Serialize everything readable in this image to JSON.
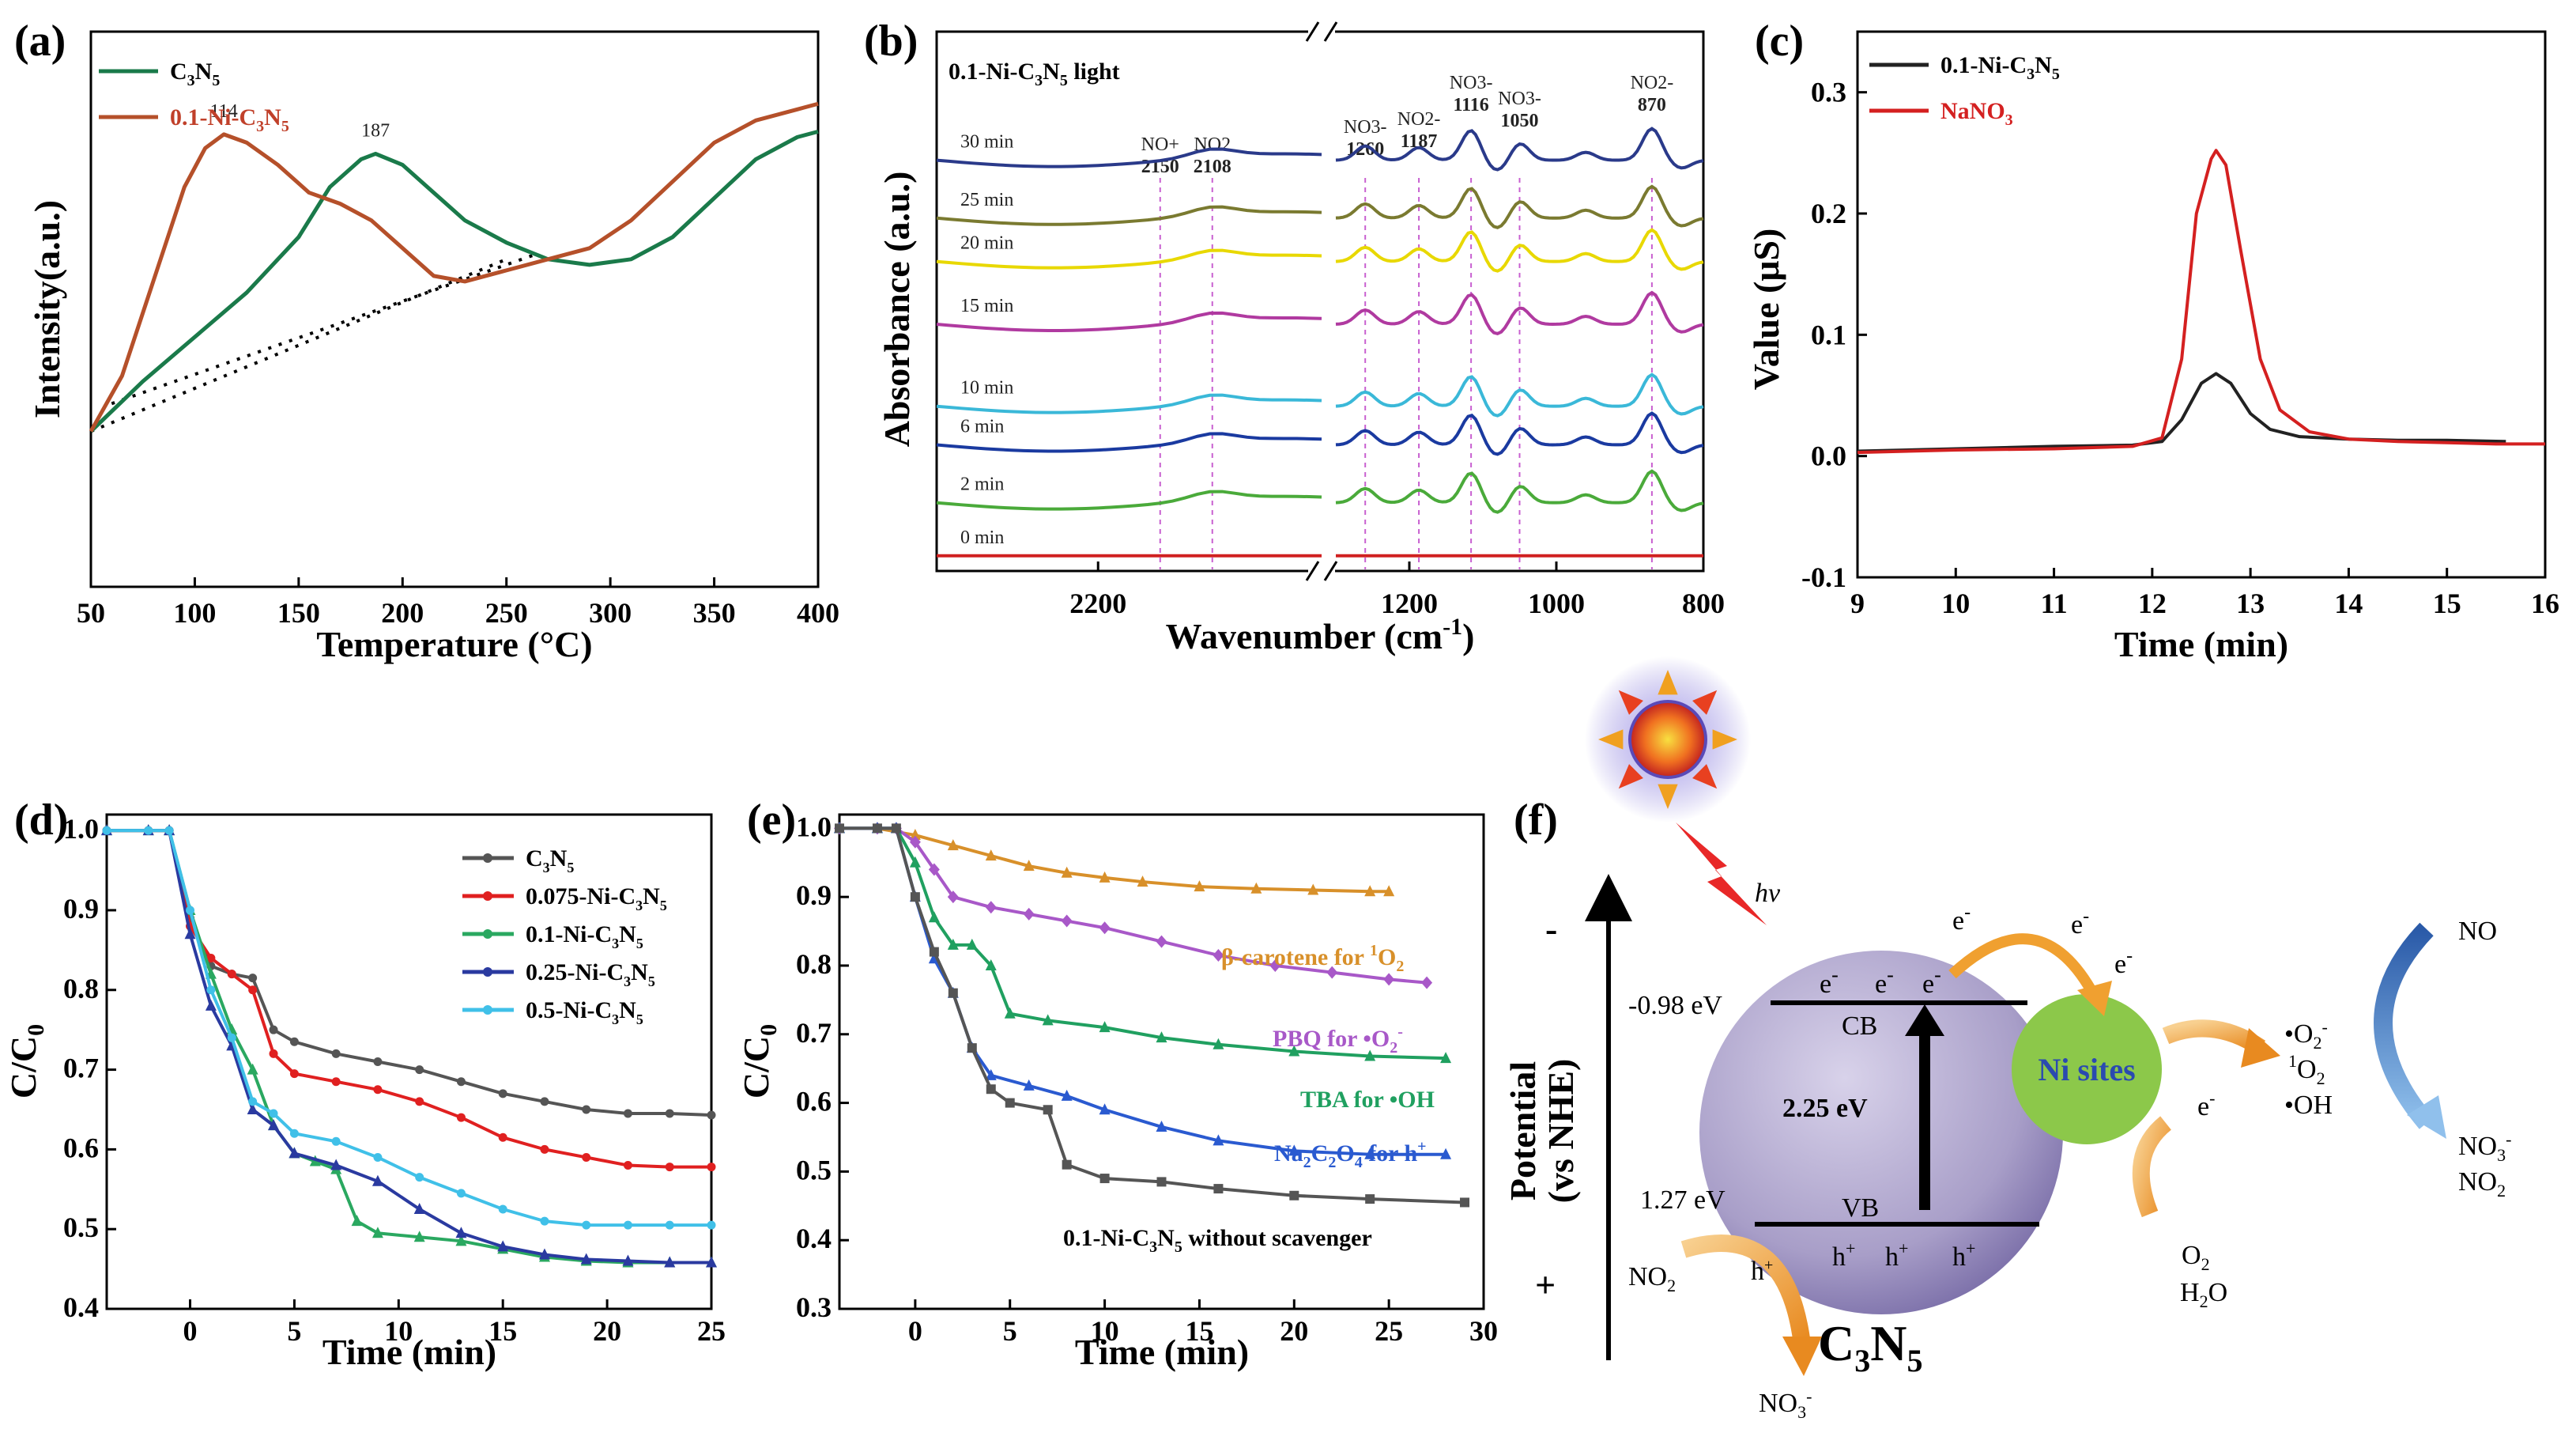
{
  "chart_data": [
    {
      "id": "a",
      "panel_label": "(a)",
      "type": "line",
      "xlabel": "Temperature (°C)",
      "ylabel": "Intensity(a.u.)",
      "xlim": [
        50,
        400
      ],
      "ylim": [
        0,
        1
      ],
      "xticks": [
        "50",
        "100",
        "150",
        "200",
        "250",
        "300",
        "350",
        "400"
      ],
      "peak_labels": [
        {
          "text": "114",
          "x": 114,
          "y": 0.815
        },
        {
          "text": "187",
          "x": 187,
          "y": 0.78
        }
      ],
      "series": [
        {
          "name": "C3N5",
          "name_main": "C",
          "name_sub1": "3",
          "name_mid": "N",
          "name_sub2": "5",
          "color": "#1a7a4a",
          "x": [
            50,
            75,
            100,
            125,
            150,
            165,
            180,
            187,
            200,
            215,
            230,
            250,
            270,
            290,
            310,
            330,
            350,
            370,
            390,
            400
          ],
          "y": [
            0.28,
            0.37,
            0.45,
            0.53,
            0.63,
            0.72,
            0.77,
            0.78,
            0.76,
            0.71,
            0.66,
            0.62,
            0.59,
            0.58,
            0.59,
            0.63,
            0.7,
            0.77,
            0.81,
            0.82
          ]
        },
        {
          "name": "0.1-Ni-C3N5",
          "name_main": "0.1-Ni-C",
          "name_sub1": "3",
          "name_mid": "N",
          "name_sub2": "5",
          "color": "#b5502a",
          "x": [
            50,
            65,
            80,
            95,
            105,
            114,
            125,
            140,
            155,
            170,
            185,
            200,
            215,
            230,
            250,
            270,
            290,
            310,
            330,
            350,
            370,
            390,
            400
          ],
          "y": [
            0.28,
            0.38,
            0.55,
            0.72,
            0.79,
            0.815,
            0.8,
            0.76,
            0.71,
            0.69,
            0.66,
            0.61,
            0.56,
            0.55,
            0.57,
            0.59,
            0.61,
            0.66,
            0.73,
            0.8,
            0.84,
            0.86,
            0.87
          ]
        }
      ],
      "baselines": [
        {
          "x": [
            50,
            250
          ],
          "y": [
            0.28,
            0.59
          ]
        },
        {
          "x": [
            60,
            265
          ],
          "y": [
            0.33,
            0.6
          ]
        }
      ]
    },
    {
      "id": "b",
      "panel_label": "(b)",
      "type": "line",
      "title": "0.1-Ni-C3N5 light",
      "title_parts": {
        "main": "0.1-Ni-C",
        "sub1": "3",
        "mid": "N",
        "sub2": "5",
        "tail": " light"
      },
      "xlabel": "Wavenumber (cm-1)",
      "xlabel_main": "Wavenumber  (cm",
      "xlabel_sup": "-1",
      "xlabel_close": ")",
      "ylabel": "Absorbance (a.u.)",
      "xticks": [
        "2200",
        "1200",
        "1000",
        "800"
      ],
      "band_labels": [
        {
          "name": "NO+",
          "value": "2150"
        },
        {
          "name": "NO2",
          "value": "2108"
        },
        {
          "name": "NO3-",
          "value": "1260"
        },
        {
          "name": "NO2-",
          "value": "1187"
        },
        {
          "name": "NO3-",
          "value": "1116"
        },
        {
          "name": "NO3-",
          "value": "1050"
        },
        {
          "name": "NO2-",
          "value": "870"
        }
      ],
      "series": [
        {
          "name": "30 min",
          "color": "#2a3a8a",
          "offset": 0.84
        },
        {
          "name": "25 min",
          "color": "#7a7a30",
          "offset": 0.72
        },
        {
          "name": "20 min",
          "color": "#e8d800",
          "offset": 0.63
        },
        {
          "name": "15 min",
          "color": "#b03aa0",
          "offset": 0.5
        },
        {
          "name": "10 min",
          "color": "#3ab8d8",
          "offset": 0.33
        },
        {
          "name": "6 min",
          "color": "#1a3aa0",
          "offset": 0.25
        },
        {
          "name": "2 min",
          "color": "#4aaa3a",
          "offset": 0.13
        },
        {
          "name": "0 min",
          "color": "#d02020",
          "offset": 0.02
        }
      ]
    },
    {
      "id": "c",
      "panel_label": "(c)",
      "type": "line",
      "xlabel": "Time (min)",
      "ylabel": "Value  (μS)",
      "xlim": [
        9,
        16
      ],
      "ylim": [
        -0.1,
        0.35
      ],
      "xticks": [
        "9",
        "10",
        "11",
        "12",
        "13",
        "14",
        "15",
        "16"
      ],
      "yticks": [
        "-0.1",
        "0.0",
        "0.1",
        "0.2",
        "0.3"
      ],
      "series": [
        {
          "name": "0.1-Ni-C3N5",
          "name_main": "0.1-Ni-C",
          "name_sub1": "3",
          "name_mid": "N",
          "name_sub2": "5",
          "color": "#222222",
          "x": [
            9,
            10,
            11,
            11.8,
            12.1,
            12.3,
            12.5,
            12.65,
            12.8,
            13.0,
            13.2,
            13.5,
            14,
            14.5,
            15,
            15.6
          ],
          "y": [
            0.004,
            0.006,
            0.008,
            0.009,
            0.012,
            0.03,
            0.06,
            0.068,
            0.06,
            0.035,
            0.022,
            0.016,
            0.014,
            0.013,
            0.013,
            0.012
          ]
        },
        {
          "name": "NaNO3",
          "name_main": "NaNO",
          "name_sub1": "3",
          "name_mid": "",
          "name_sub2": "",
          "color": "#d42020",
          "x": [
            9,
            10,
            11,
            11.8,
            12.1,
            12.3,
            12.45,
            12.6,
            12.65,
            12.75,
            12.9,
            13.1,
            13.3,
            13.6,
            14,
            14.5,
            15,
            15.5,
            16
          ],
          "y": [
            0.003,
            0.005,
            0.006,
            0.008,
            0.015,
            0.08,
            0.2,
            0.245,
            0.252,
            0.24,
            0.17,
            0.08,
            0.038,
            0.02,
            0.014,
            0.012,
            0.011,
            0.01,
            0.01
          ]
        }
      ]
    },
    {
      "id": "d",
      "panel_label": "(d)",
      "type": "line",
      "xlabel": "Time (min)",
      "ylabel": "C/C0",
      "ylabel_main": "C/C",
      "ylabel_sub": "0",
      "xlim": [
        -4,
        25
      ],
      "ylim": [
        0.4,
        1.02
      ],
      "xticks": [
        "0",
        "5",
        "10",
        "15",
        "20",
        "25"
      ],
      "yticks": [
        "0.4",
        "0.5",
        "0.6",
        "0.7",
        "0.8",
        "0.9",
        "1.0"
      ],
      "series": [
        {
          "name": "C3N5",
          "name_main": "C",
          "name_sub1": "3",
          "name_mid": "N",
          "name_sub2": "5",
          "color": "#555555",
          "x": [
            -4,
            -2,
            -1,
            0,
            1,
            2,
            3,
            4,
            5,
            7,
            9,
            11,
            13,
            15,
            17,
            19,
            21,
            23,
            25
          ],
          "y": [
            1.0,
            1.0,
            1.0,
            0.89,
            0.83,
            0.82,
            0.815,
            0.75,
            0.735,
            0.72,
            0.71,
            0.7,
            0.685,
            0.67,
            0.66,
            0.65,
            0.645,
            0.645,
            0.643
          ]
        },
        {
          "name": "0.075-Ni-C3N5",
          "name_main": "0.075-Ni-C",
          "name_sub1": "3",
          "name_mid": "N",
          "name_sub2": "5",
          "color": "#e02020",
          "x": [
            -4,
            -2,
            -1,
            0,
            1,
            2,
            3,
            4,
            5,
            7,
            9,
            11,
            13,
            15,
            17,
            19,
            21,
            23,
            25
          ],
          "y": [
            1.0,
            1.0,
            1.0,
            0.88,
            0.84,
            0.82,
            0.8,
            0.72,
            0.695,
            0.685,
            0.675,
            0.66,
            0.64,
            0.615,
            0.6,
            0.59,
            0.58,
            0.578,
            0.578
          ]
        },
        {
          "name": "0.1-Ni-C3N5",
          "name_main": "0.1-Ni-C",
          "name_sub1": "3",
          "name_mid": "N",
          "name_sub2": "5",
          "color": "#2aa860",
          "x": [
            -4,
            -2,
            -1,
            0,
            1,
            2,
            3,
            4,
            5,
            6,
            7,
            8,
            9,
            11,
            13,
            15,
            17,
            19,
            21,
            23,
            25
          ],
          "y": [
            1.0,
            1.0,
            1.0,
            0.9,
            0.82,
            0.75,
            0.7,
            0.63,
            0.595,
            0.585,
            0.575,
            0.51,
            0.495,
            0.49,
            0.485,
            0.475,
            0.465,
            0.46,
            0.458,
            0.458,
            0.458
          ]
        },
        {
          "name": "0.25-Ni-C3N5",
          "name_main": "0.25-Ni-C",
          "name_sub1": "3",
          "name_mid": "N",
          "name_sub2": "5",
          "color": "#2a3aa0",
          "x": [
            -4,
            -2,
            -1,
            0,
            1,
            2,
            3,
            4,
            5,
            7,
            9,
            11,
            13,
            15,
            17,
            19,
            21,
            23,
            25
          ],
          "y": [
            1.0,
            1.0,
            1.0,
            0.87,
            0.78,
            0.73,
            0.65,
            0.63,
            0.595,
            0.58,
            0.56,
            0.525,
            0.495,
            0.478,
            0.468,
            0.462,
            0.46,
            0.458,
            0.458
          ]
        },
        {
          "name": "0.5-Ni-C3N5",
          "name_main": "0.5-Ni-C",
          "name_sub1": "3",
          "name_mid": "N",
          "name_sub2": "5",
          "color": "#40c0e8",
          "x": [
            -4,
            -2,
            -1,
            0,
            1,
            2,
            3,
            4,
            5,
            7,
            9,
            11,
            13,
            15,
            17,
            19,
            21,
            23,
            25
          ],
          "y": [
            1.0,
            1.0,
            1.0,
            0.9,
            0.8,
            0.74,
            0.66,
            0.645,
            0.62,
            0.61,
            0.59,
            0.565,
            0.545,
            0.525,
            0.51,
            0.505,
            0.505,
            0.505,
            0.505
          ]
        }
      ]
    },
    {
      "id": "e",
      "panel_label": "(e)",
      "type": "line",
      "xlabel": "Time (min)",
      "ylabel": "C/C0",
      "ylabel_main": "C/C",
      "ylabel_sub": "0",
      "xlim": [
        -4,
        30
      ],
      "ylim": [
        0.3,
        1.02
      ],
      "xticks": [
        "0",
        "5",
        "10",
        "15",
        "20",
        "25",
        "30"
      ],
      "yticks": [
        "0.3",
        "0.4",
        "0.5",
        "0.6",
        "0.7",
        "0.8",
        "0.9",
        "1.0"
      ],
      "series": [
        {
          "name": "β-carotene for 1O2",
          "label_main": "β-carotene for ",
          "label_sup": "1",
          "label_tail": "O",
          "label_sub": "2",
          "color": "#d8902a",
          "x": [
            -4,
            -2,
            0,
            2,
            4,
            6,
            8,
            10,
            12,
            15,
            18,
            21,
            24,
            25
          ],
          "y": [
            1.0,
            1.0,
            0.99,
            0.975,
            0.96,
            0.945,
            0.935,
            0.928,
            0.922,
            0.915,
            0.912,
            0.91,
            0.908,
            0.908
          ]
        },
        {
          "name": "PBQ for •O2-",
          "label_main": "PBQ for •O",
          "label_sup": "-",
          "label_tail": "",
          "label_sub": "2",
          "color": "#a858c8",
          "x": [
            -4,
            -2,
            -1,
            0,
            1,
            2,
            4,
            6,
            8,
            10,
            13,
            16,
            19,
            22,
            25,
            27
          ],
          "y": [
            1.0,
            1.0,
            1.0,
            0.98,
            0.94,
            0.9,
            0.885,
            0.875,
            0.865,
            0.855,
            0.835,
            0.815,
            0.8,
            0.79,
            0.78,
            0.775
          ]
        },
        {
          "name": "TBA for •OH",
          "label_main": "TBA for •OH",
          "label_sup": "",
          "label_tail": "",
          "label_sub": "",
          "color": "#20a060",
          "x": [
            -4,
            -2,
            -1,
            0,
            1,
            2,
            3,
            4,
            5,
            7,
            10,
            13,
            16,
            20,
            24,
            28
          ],
          "y": [
            1.0,
            1.0,
            1.0,
            0.95,
            0.87,
            0.83,
            0.83,
            0.8,
            0.73,
            0.72,
            0.71,
            0.695,
            0.685,
            0.675,
            0.668,
            0.665
          ]
        },
        {
          "name": "Na2C2O4 for h+",
          "label_main": "Na",
          "label_sup": "+",
          "label_tail": "",
          "label_sub": "2",
          "color": "#2a5ad0",
          "x": [
            -4,
            -2,
            -1,
            0,
            1,
            2,
            3,
            4,
            6,
            8,
            10,
            13,
            16,
            20,
            24,
            28
          ],
          "y": [
            1.0,
            1.0,
            1.0,
            0.9,
            0.81,
            0.76,
            0.68,
            0.64,
            0.625,
            0.61,
            0.59,
            0.565,
            0.545,
            0.53,
            0.525,
            0.525
          ]
        },
        {
          "name": "0.1-Ni-C3N5 without scavenger",
          "label_main": "0.1-Ni-C",
          "label_sup": "",
          "label_tail": "",
          "label_sub": "3",
          "color": "#555555",
          "x": [
            -4,
            -2,
            -1,
            0,
            1,
            2,
            3,
            4,
            5,
            7,
            8,
            10,
            13,
            16,
            20,
            24,
            29
          ],
          "y": [
            1.0,
            1.0,
            1.0,
            0.9,
            0.82,
            0.76,
            0.68,
            0.62,
            0.6,
            0.59,
            0.51,
            0.49,
            0.485,
            0.475,
            0.465,
            0.46,
            0.455
          ]
        }
      ]
    }
  ],
  "panels": {
    "a_letter": "(a)",
    "b_letter": "(b)",
    "c_letter": "(c)",
    "d_letter": "(d)",
    "e_letter": "(e)",
    "f_letter": "(f)"
  },
  "panel_f": {
    "potential_label": "Potential (vs NHE)",
    "potential_line1": "Potential",
    "potential_line2": "(vs NHE)",
    "minus_sign": "-",
    "plus_sign": "+",
    "light_label": "hv",
    "cb_potential": "-0.98 eV",
    "vb_potential": "1.27 eV",
    "cb_label": "CB",
    "vb_label": "VB",
    "band_gap": "2.25 eV",
    "catalyst_name": "C3N5",
    "catalyst_main": "C",
    "catalyst_sub1": "3",
    "catalyst_mid": "N",
    "catalyst_sub2": "5",
    "ni_sites": "Ni sites",
    "electron": "e",
    "electron_sup": "-",
    "hole": "h",
    "hole_sup": "+",
    "no2_label": "NO",
    "no2_sub": "2",
    "no3_label": "NO",
    "no3_sub": "3",
    "no3_sup": "-",
    "o2_label": "O",
    "o2_sub": "2",
    "h2o_label": "H",
    "h2o_sub": "2",
    "h2o_tail": "O",
    "no_label": "NO",
    "radicals": {
      "superoxide": "•O",
      "superoxide_sub": "2",
      "superoxide_sup": "-",
      "singlet_sup": "1",
      "singlet": "O",
      "singlet_sub": "2",
      "hydroxyl": "•OH"
    },
    "products": {
      "no3": "NO",
      "no3_sub": "3",
      "no3_sup": "-",
      "no2": "NO",
      "no2_sub": "2"
    },
    "colors": {
      "sphere": "#a89ec8",
      "ni_sphere": "#8cc84a",
      "orange_arrow": "#f0a030",
      "blue_arrow": "#3a7ac8",
      "sun_core": "#e84020",
      "sun_ray": "#f0a020",
      "ni_text": "#2a4ab0"
    }
  }
}
